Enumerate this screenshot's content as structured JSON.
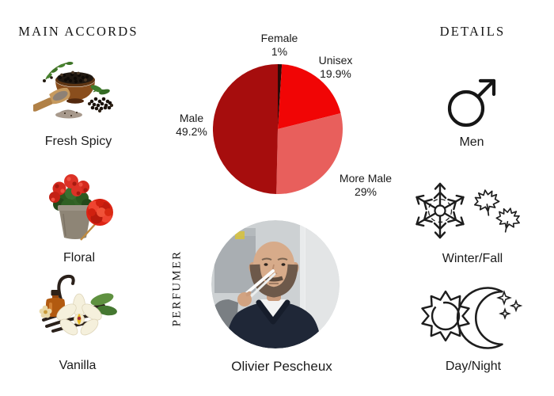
{
  "main_accords": {
    "heading": "MAIN ACCORDS",
    "items": [
      {
        "label": "Fresh Spicy",
        "image": "peppercorn-bowl-and-scoop-photo"
      },
      {
        "label": "Floral",
        "image": "red-geranium-pot-photo"
      },
      {
        "label": "Vanilla",
        "image": "vanilla-orchid-pods-and-bottle-photo"
      }
    ]
  },
  "details": {
    "heading": "DETAILS",
    "items": [
      {
        "label": "Men",
        "icon": "male-mars-symbol-icon"
      },
      {
        "label": "Winter/Fall",
        "icon": "snowflake-and-maple-leaves-icon"
      },
      {
        "label": "Day/Night",
        "icon": "sun-and-crescent-moon-icon"
      }
    ]
  },
  "perfumer": {
    "heading": "PERFUMER",
    "name": "Olivier Pescheux",
    "photo": "olivier-pescheux-portrait-photo"
  },
  "chart_data": {
    "type": "pie",
    "title": "",
    "start_angle_deg": 0,
    "direction": "clockwise",
    "legend_position": "labels-around-pie",
    "slices": [
      {
        "label": "Female",
        "value": 1,
        "display": "1%",
        "color": "#2a0a08"
      },
      {
        "label": "Unisex",
        "value": 19.9,
        "display": "19.9%",
        "color": "#f10505"
      },
      {
        "label": "More Male",
        "value": 29,
        "display": "29%",
        "color": "#e85f5c"
      },
      {
        "label": "Male",
        "value": 49.2,
        "display": "49.2%",
        "color": "#a60d0d"
      }
    ]
  }
}
